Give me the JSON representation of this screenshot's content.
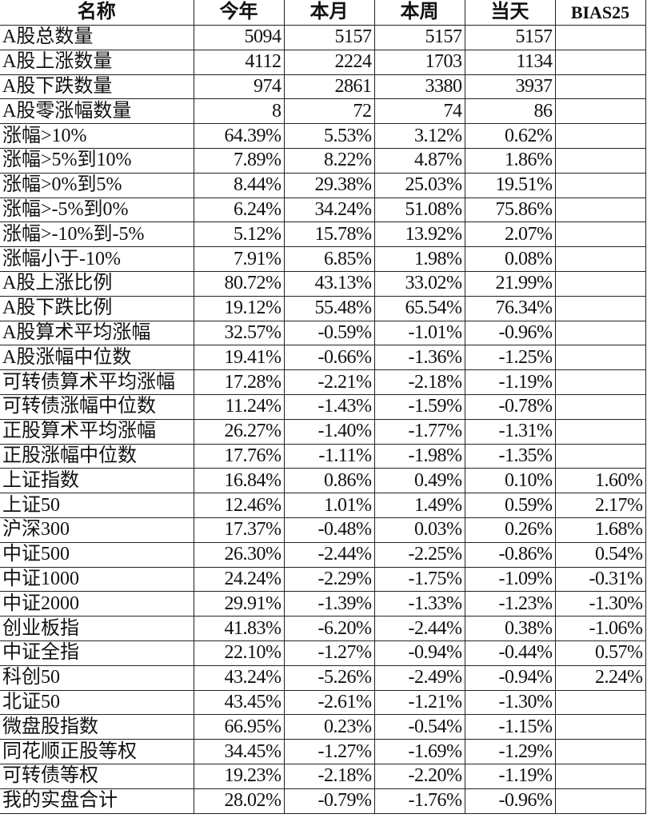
{
  "headers": [
    "名称",
    "今年",
    "本月",
    "本周",
    "当天",
    "BIAS25"
  ],
  "rows": [
    [
      "A股总数量",
      "5094",
      "5157",
      "5157",
      "5157",
      ""
    ],
    [
      "A股上涨数量",
      "4112",
      "2224",
      "1703",
      "1134",
      ""
    ],
    [
      "A股下跌数量",
      "974",
      "2861",
      "3380",
      "3937",
      ""
    ],
    [
      "A股零涨幅数量",
      "8",
      "72",
      "74",
      "86",
      ""
    ],
    [
      "涨幅>10%",
      "64.39%",
      "5.53%",
      "3.12%",
      "0.62%",
      ""
    ],
    [
      "涨幅>5%到10%",
      "7.89%",
      "8.22%",
      "4.87%",
      "1.86%",
      ""
    ],
    [
      "涨幅>0%到5%",
      "8.44%",
      "29.38%",
      "25.03%",
      "19.51%",
      ""
    ],
    [
      "涨幅>-5%到0%",
      "6.24%",
      "34.24%",
      "51.08%",
      "75.86%",
      ""
    ],
    [
      "涨幅>-10%到-5%",
      "5.12%",
      "15.78%",
      "13.92%",
      "2.07%",
      ""
    ],
    [
      "涨幅小于-10%",
      "7.91%",
      "6.85%",
      "1.98%",
      "0.08%",
      ""
    ],
    [
      "A股上涨比例",
      "80.72%",
      "43.13%",
      "33.02%",
      "21.99%",
      ""
    ],
    [
      "A股下跌比例",
      "19.12%",
      "55.48%",
      "65.54%",
      "76.34%",
      ""
    ],
    [
      "A股算术平均涨幅",
      "32.57%",
      "-0.59%",
      "-1.01%",
      "-0.96%",
      ""
    ],
    [
      "A股涨幅中位数",
      "19.41%",
      "-0.66%",
      "-1.36%",
      "-1.25%",
      ""
    ],
    [
      "可转债算术平均涨幅",
      "17.28%",
      "-2.21%",
      "-2.18%",
      "-1.19%",
      ""
    ],
    [
      "可转债涨幅中位数",
      "11.24%",
      "-1.43%",
      "-1.59%",
      "-0.78%",
      ""
    ],
    [
      "正股算术平均涨幅",
      "26.27%",
      "-1.40%",
      "-1.77%",
      "-1.31%",
      ""
    ],
    [
      "正股涨幅中位数",
      "17.76%",
      "-1.11%",
      "-1.98%",
      "-1.35%",
      ""
    ],
    [
      "上证指数",
      "16.84%",
      "0.86%",
      "0.49%",
      "0.10%",
      "1.60%"
    ],
    [
      "上证50",
      "12.46%",
      "1.01%",
      "1.49%",
      "0.59%",
      "2.17%"
    ],
    [
      "沪深300",
      "17.37%",
      "-0.48%",
      "0.03%",
      "0.26%",
      "1.68%"
    ],
    [
      "中证500",
      "26.30%",
      "-2.44%",
      "-2.25%",
      "-0.86%",
      "0.54%"
    ],
    [
      "中证1000",
      "24.24%",
      "-2.29%",
      "-1.75%",
      "-1.09%",
      "-0.31%"
    ],
    [
      "中证2000",
      "29.91%",
      "-1.39%",
      "-1.33%",
      "-1.23%",
      "-1.30%"
    ],
    [
      "创业板指",
      "41.83%",
      "-6.20%",
      "-2.44%",
      "0.38%",
      "-1.06%"
    ],
    [
      "中证全指",
      "22.10%",
      "-1.27%",
      "-0.94%",
      "-0.44%",
      "0.57%"
    ],
    [
      "科创50",
      "43.24%",
      "-5.26%",
      "-2.49%",
      "-0.94%",
      "2.24%"
    ],
    [
      "北证50",
      "43.45%",
      "-2.61%",
      "-1.21%",
      "-1.30%",
      ""
    ],
    [
      "微盘股指数",
      "66.95%",
      "0.23%",
      "-0.54%",
      "-1.15%",
      ""
    ],
    [
      "同花顺正股等权",
      "34.45%",
      "-1.27%",
      "-1.69%",
      "-1.29%",
      ""
    ],
    [
      "可转债等权",
      "19.23%",
      "-2.18%",
      "-2.20%",
      "-1.19%",
      ""
    ],
    [
      "我的实盘合计",
      "28.02%",
      "-0.79%",
      "-1.76%",
      "-0.96%",
      ""
    ]
  ]
}
